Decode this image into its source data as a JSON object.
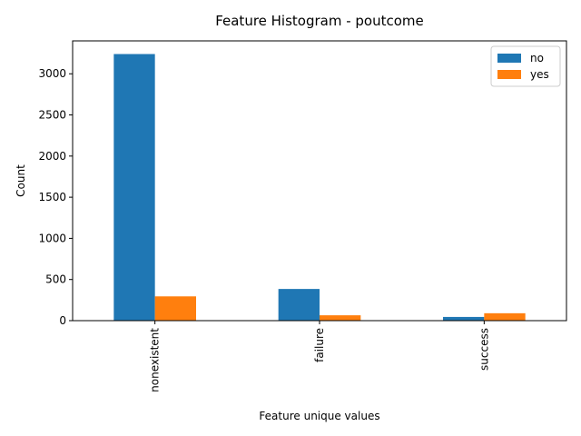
{
  "chart_data": {
    "type": "bar",
    "title": "Feature Histogram - poutcome",
    "xlabel": "Feature unique values",
    "ylabel": "Count",
    "categories": [
      "nonexistent",
      "failure",
      "success"
    ],
    "series": [
      {
        "name": "no",
        "color": "#1f77b4",
        "values": [
          3240,
          385,
          45
        ]
      },
      {
        "name": "yes",
        "color": "#ff7f0e",
        "values": [
          295,
          65,
          90
        ]
      }
    ],
    "ylim": [
      0,
      3400
    ],
    "yticks": [
      0,
      500,
      1000,
      1500,
      2000,
      2500,
      3000
    ],
    "grid": false,
    "legend_position": "top-right",
    "x_tick_rotation": "vertical"
  }
}
